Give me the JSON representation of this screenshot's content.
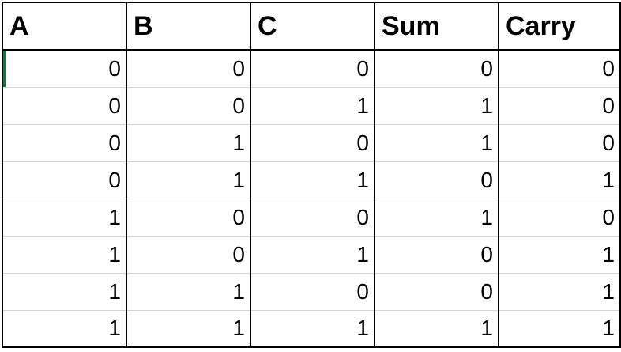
{
  "table": {
    "headers": [
      "A",
      "B",
      "C",
      "Sum",
      "Carry"
    ],
    "rows": [
      [
        "0",
        "0",
        "0",
        "0",
        "0"
      ],
      [
        "0",
        "0",
        "1",
        "1",
        "0"
      ],
      [
        "0",
        "1",
        "0",
        "1",
        "0"
      ],
      [
        "0",
        "1",
        "1",
        "0",
        "1"
      ],
      [
        "1",
        "0",
        "0",
        "1",
        "0"
      ],
      [
        "1",
        "0",
        "1",
        "0",
        "1"
      ],
      [
        "1",
        "1",
        "0",
        "0",
        "1"
      ],
      [
        "1",
        "1",
        "1",
        "1",
        "1"
      ]
    ]
  },
  "colors": {
    "grid_line": "#d4d4d4",
    "border": "#000000",
    "selection": "#1e7145"
  }
}
